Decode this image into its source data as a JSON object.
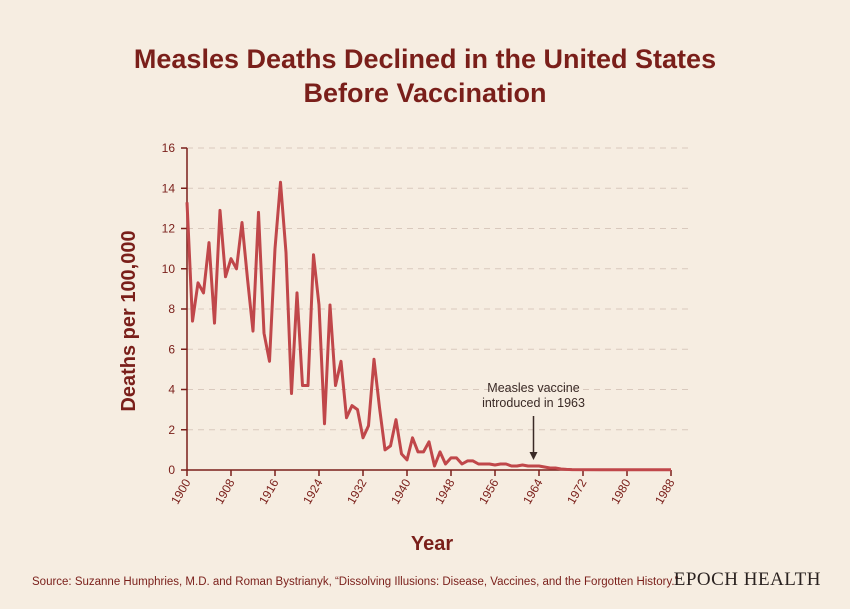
{
  "title_line1": "Measles Deaths Declined in the United States",
  "title_line2": "Before Vaccination",
  "source": "Source: Suzanne Humphries, M.D. and Roman Bystrianyk, “Dissolving Illusions: Disease, Vaccines, and the Forgotten History.”",
  "brand": "EPOCH HEALTH",
  "colors": {
    "accent": "#7a1f1a",
    "line": "#c0474a",
    "background": "#f6ede1",
    "grid": "#d9c9bd"
  },
  "chart_data": {
    "type": "line",
    "title": "Measles Deaths Declined in the United States Before Vaccination",
    "xlabel": "Year",
    "ylabel": "Deaths per 100,000",
    "xlim": [
      1900,
      1988
    ],
    "ylim": [
      0,
      16
    ],
    "grid": true,
    "x_ticks": [
      "1900",
      "1908",
      "1916",
      "1924",
      "1932",
      "1940",
      "1948",
      "1956",
      "1964",
      "1972",
      "1980",
      "1988"
    ],
    "y_ticks": [
      "0",
      "2",
      "4",
      "6",
      "8",
      "10",
      "12",
      "14",
      "16"
    ],
    "annotation": {
      "text_line1": "Measles vaccine",
      "text_line2": "introduced in 1963",
      "x": 1963
    },
    "series": [
      {
        "name": "Measles deaths per 100,000",
        "x": [
          1900,
          1901,
          1902,
          1903,
          1904,
          1905,
          1906,
          1907,
          1908,
          1909,
          1910,
          1911,
          1912,
          1913,
          1914,
          1915,
          1916,
          1917,
          1918,
          1919,
          1920,
          1921,
          1922,
          1923,
          1924,
          1925,
          1926,
          1927,
          1928,
          1929,
          1930,
          1931,
          1932,
          1933,
          1934,
          1935,
          1936,
          1937,
          1938,
          1939,
          1940,
          1941,
          1942,
          1943,
          1944,
          1945,
          1946,
          1947,
          1948,
          1949,
          1950,
          1951,
          1952,
          1953,
          1954,
          1955,
          1956,
          1957,
          1958,
          1959,
          1960,
          1961,
          1962,
          1963,
          1964,
          1965,
          1966,
          1967,
          1968,
          1969,
          1970,
          1975,
          1980,
          1985,
          1988
        ],
        "values": [
          13.3,
          7.4,
          9.3,
          8.8,
          11.3,
          7.3,
          12.9,
          9.6,
          10.5,
          10.0,
          12.3,
          9.5,
          6.9,
          12.8,
          6.8,
          5.4,
          11.0,
          14.3,
          10.8,
          3.8,
          8.8,
          4.2,
          4.2,
          10.7,
          8.2,
          2.3,
          8.2,
          4.2,
          5.4,
          2.6,
          3.2,
          3.0,
          1.6,
          2.2,
          5.5,
          3.1,
          1.0,
          1.2,
          2.5,
          0.8,
          0.5,
          1.6,
          0.9,
          0.9,
          1.4,
          0.2,
          0.9,
          0.3,
          0.6,
          0.6,
          0.3,
          0.45,
          0.45,
          0.3,
          0.3,
          0.3,
          0.25,
          0.3,
          0.3,
          0.2,
          0.2,
          0.25,
          0.2,
          0.2,
          0.2,
          0.15,
          0.1,
          0.1,
          0.05,
          0.03,
          0.02,
          0.01,
          0.01,
          0.01,
          0.01
        ]
      }
    ]
  }
}
